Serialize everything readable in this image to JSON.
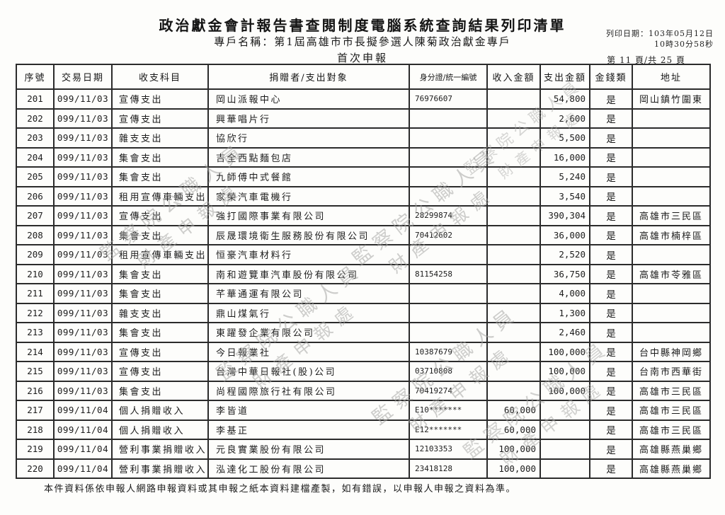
{
  "header": {
    "title": "政治獻金會計報告書查閱制度電腦系統查詢結果列印清單",
    "subtitle": "專戶名稱：第1屆高雄市市長擬參選人陳菊政治獻金專戶",
    "print_date": "列印日期：103年05月12日",
    "print_time": "10時30分58秒",
    "report_type": "首次申報",
    "page_indicator": "第 11 頁/共 25 頁"
  },
  "watermark": {
    "line1": "監察院公職人員",
    "line2": "財產申報處"
  },
  "table": {
    "columns": [
      "序號",
      "交易日期",
      "收支科目",
      "捐贈者/支出對象",
      "身分證/統一編號",
      "收入金額",
      "支出金額",
      "金錢類",
      "地址"
    ],
    "rows": [
      [
        "201",
        "099/11/03",
        "宣傳支出",
        "岡山派報中心",
        "76976607",
        "",
        "54,800",
        "是",
        "岡山鎮竹圍東"
      ],
      [
        "202",
        "099/11/03",
        "宣傳支出",
        "興華唱片行",
        "",
        "",
        "2,600",
        "是",
        ""
      ],
      [
        "203",
        "099/11/03",
        "雜支支出",
        "協欣行",
        "",
        "",
        "5,500",
        "是",
        ""
      ],
      [
        "204",
        "099/11/03",
        "集會支出",
        "吉全西點麵包店",
        "",
        "",
        "16,000",
        "是",
        ""
      ],
      [
        "205",
        "099/11/03",
        "集會支出",
        "九師傅中式餐館",
        "",
        "",
        "5,240",
        "是",
        ""
      ],
      [
        "206",
        "099/11/03",
        "租用宣傳車輛支出",
        "家榮汽車電機行",
        "",
        "",
        "3,540",
        "是",
        ""
      ],
      [
        "207",
        "099/11/03",
        "宣傳支出",
        "強打國際事業有限公司",
        "28299874",
        "",
        "390,304",
        "是",
        "高雄市三民區"
      ],
      [
        "208",
        "099/11/03",
        "集會支出",
        "辰晟環境衛生服務股份有限公司",
        "70412602",
        "",
        "36,000",
        "是",
        "高雄市楠梓區"
      ],
      [
        "209",
        "099/11/03",
        "租用宣傳車輛支出",
        "恒豪汽車材料行",
        "",
        "",
        "2,520",
        "是",
        ""
      ],
      [
        "210",
        "099/11/03",
        "集會支出",
        "南和遊覽車汽車股份有限公司",
        "81154258",
        "",
        "36,750",
        "是",
        "高雄市苓雅區"
      ],
      [
        "211",
        "099/11/03",
        "集會支出",
        "芊華通運有限公司",
        "",
        "",
        "4,000",
        "是",
        ""
      ],
      [
        "212",
        "099/11/03",
        "雜支支出",
        "鼎山煤氣行",
        "",
        "",
        "1,300",
        "是",
        ""
      ],
      [
        "213",
        "099/11/03",
        "集會支出",
        "東躍發企業有限公司",
        "",
        "",
        "2,460",
        "是",
        ""
      ],
      [
        "214",
        "099/11/03",
        "宣傳支出",
        "今日報業社",
        "10387679",
        "",
        "100,000",
        "是",
        "台中縣神岡鄉"
      ],
      [
        "215",
        "099/11/03",
        "宣傳支出",
        "台灣中華日報社(股)公司",
        "03710808",
        "",
        "100,000",
        "是",
        "台南市西華街"
      ],
      [
        "216",
        "099/11/03",
        "集會支出",
        "尚程國際旅行社有限公司",
        "70419274",
        "",
        "100,000",
        "是",
        "高雄市三民區"
      ],
      [
        "217",
        "099/11/04",
        "個人捐贈收入",
        "李皆道",
        "E10*******",
        "60,000",
        "",
        "是",
        "高雄市三民區"
      ],
      [
        "218",
        "099/11/04",
        "個人捐贈收入",
        "李基正",
        "E12*******",
        "60,000",
        "",
        "是",
        "高雄市三民區"
      ],
      [
        "219",
        "099/11/04",
        "營利事業捐贈收入",
        "元良實業股份有限公司",
        "12103353",
        "100,000",
        "",
        "是",
        "高雄縣燕巢鄉"
      ],
      [
        "220",
        "099/11/04",
        "營利事業捐贈收入",
        "泓達化工股份有限公司",
        "23418128",
        "100,000",
        "",
        "是",
        "高雄縣燕巢鄉"
      ]
    ]
  },
  "footer": {
    "note": "本件資料係依申報人網路申報資料或其申報之紙本資料建檔產製，如有錯誤，以申報人申報之資料為準。"
  }
}
